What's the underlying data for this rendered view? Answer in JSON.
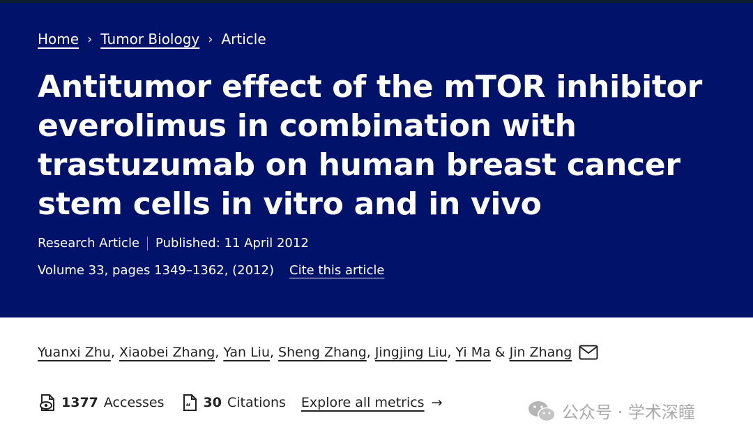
{
  "breadcrumb": {
    "home": "Home",
    "section": "Tumor Biology",
    "current": "Article",
    "separator": "›"
  },
  "article": {
    "title": "Antitumor effect of the mTOR inhibitor everolimus in combination with trastuzumab on human breast cancer stem cells in vitro and in vivo",
    "type": "Research Article",
    "published": "Published: 11 April 2012",
    "volume_info": "Volume 33, pages 1349–1362, (2012)",
    "cite_label": "Cite this article"
  },
  "authors": {
    "list": [
      "Yuanxi Zhu",
      "Xiaobei Zhang",
      "Yan Liu",
      "Sheng Zhang",
      "Jingjing Liu",
      "Yi Ma",
      "Jin Zhang"
    ],
    "separator": ",",
    "ampersand": "&",
    "contact_icon": "envelope-icon"
  },
  "metrics": {
    "accesses_count": "1377",
    "accesses_label": "Accesses",
    "citations_count": "30",
    "citations_label": "Citations",
    "explore_label": "Explore all metrics",
    "explore_arrow": "→"
  },
  "watermark": {
    "text": "公众号 · 学术深瞳",
    "icon": "wechat-icon"
  },
  "colors": {
    "hero_bg": "#01126b",
    "text_dark": "#222222",
    "watermark": "#a9a9a9"
  }
}
